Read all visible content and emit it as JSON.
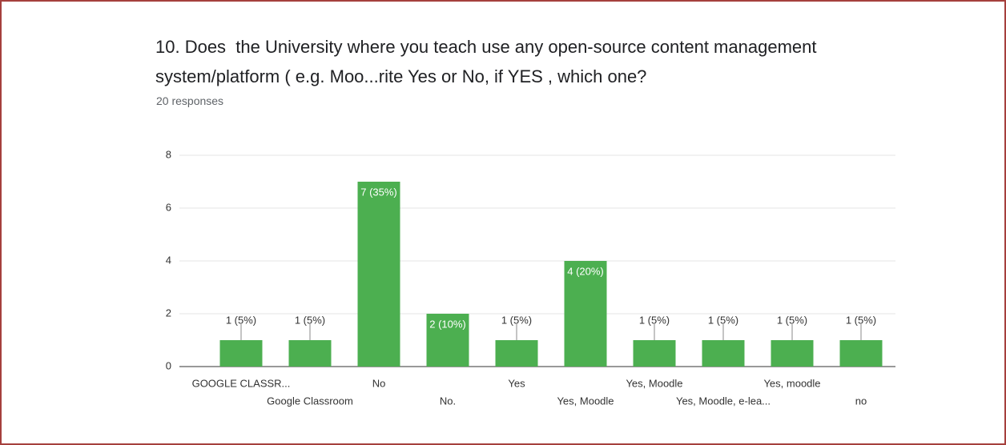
{
  "chart_data": {
    "type": "bar",
    "title": "10. Does  the University where you teach use any open-source content management system/platform ( e.g. Moo...rite Yes or No, if YES , which one?",
    "subtitle": "20 responses",
    "categories": [
      "GOOGLE CLASSR...",
      "Google Classroom",
      "No",
      "No.",
      "Yes",
      "Yes, Moodle",
      "Yes, Moodle",
      "Yes, Moodle, e-lea...",
      "Yes, moodle",
      "no"
    ],
    "values": [
      1,
      1,
      7,
      2,
      1,
      4,
      1,
      1,
      1,
      1
    ],
    "value_labels": [
      "1 (5%)",
      "1 (5%)",
      "7 (35%)",
      "2 (10%)",
      "1 (5%)",
      "4 (20%)",
      "1 (5%)",
      "1 (5%)",
      "1 (5%)",
      "1 (5%)"
    ],
    "color": "#4caf50",
    "ylim": [
      0,
      8
    ],
    "yticks": [
      0,
      2,
      4,
      6,
      8
    ],
    "grid": true
  }
}
